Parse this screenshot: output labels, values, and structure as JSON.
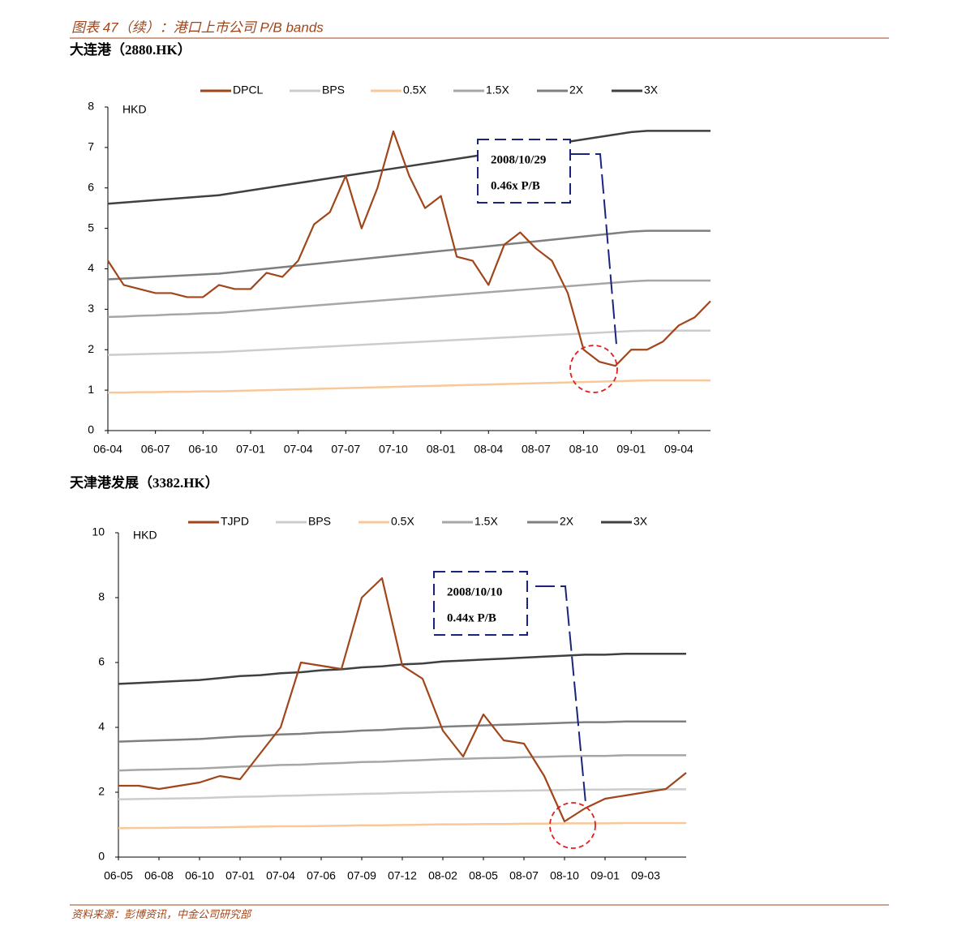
{
  "header": {
    "title": "图表 47（续）：港口上市公司 P/B bands"
  },
  "chart_data": [
    {
      "type": "line",
      "title": "大连港（2880.HK）",
      "y_label": "HKD",
      "categories": [
        "06-04",
        null,
        null,
        "06-07",
        null,
        null,
        "06-10",
        null,
        null,
        "07-01",
        null,
        null,
        "07-04",
        null,
        null,
        "07-07",
        null,
        null,
        "07-10",
        null,
        null,
        "08-01",
        null,
        null,
        "08-04",
        null,
        null,
        "08-07",
        null,
        null,
        "08-10",
        null,
        null,
        "09-01",
        null,
        null,
        "09-04",
        null,
        null
      ],
      "series": [
        {
          "name": "DPCL",
          "color": "#a0461a",
          "values": [
            4.2,
            3.6,
            3.5,
            3.4,
            3.4,
            3.3,
            3.3,
            3.6,
            3.5,
            3.5,
            3.9,
            3.8,
            4.2,
            5.1,
            5.4,
            6.3,
            5.0,
            6.0,
            7.4,
            6.3,
            5.5,
            5.8,
            4.3,
            4.2,
            3.6,
            4.6,
            4.9,
            4.5,
            4.2,
            3.4,
            2.0,
            1.7,
            1.6,
            2.0,
            2.0,
            2.2,
            2.6,
            2.8,
            3.2
          ]
        },
        {
          "name": "BPS",
          "color": "#cccccc",
          "values": [
            1.87,
            1.88,
            1.89,
            1.9,
            1.91,
            1.92,
            1.93,
            1.94,
            1.96,
            1.98,
            2.0,
            2.02,
            2.04,
            2.06,
            2.08,
            2.1,
            2.12,
            2.14,
            2.16,
            2.18,
            2.2,
            2.22,
            2.24,
            2.26,
            2.28,
            2.3,
            2.32,
            2.34,
            2.36,
            2.38,
            2.4,
            2.42,
            2.44,
            2.46,
            2.47,
            2.47,
            2.47,
            2.47,
            2.47
          ]
        },
        {
          "name": "0.5X",
          "color": "#f9c89a",
          "values": [
            0.94,
            0.94,
            0.95,
            0.95,
            0.96,
            0.96,
            0.97,
            0.97,
            0.98,
            0.99,
            1.0,
            1.01,
            1.02,
            1.03,
            1.04,
            1.05,
            1.06,
            1.07,
            1.08,
            1.09,
            1.1,
            1.11,
            1.12,
            1.13,
            1.14,
            1.15,
            1.16,
            1.17,
            1.18,
            1.19,
            1.2,
            1.21,
            1.22,
            1.23,
            1.24,
            1.24,
            1.24,
            1.24,
            1.24
          ]
        },
        {
          "name": "1.5X",
          "color": "#a6a6a6",
          "values": [
            2.81,
            2.82,
            2.84,
            2.85,
            2.87,
            2.88,
            2.9,
            2.91,
            2.94,
            2.97,
            3.0,
            3.03,
            3.06,
            3.09,
            3.12,
            3.15,
            3.18,
            3.21,
            3.24,
            3.27,
            3.3,
            3.33,
            3.36,
            3.39,
            3.42,
            3.45,
            3.48,
            3.51,
            3.54,
            3.57,
            3.6,
            3.63,
            3.66,
            3.69,
            3.71,
            3.71,
            3.71,
            3.71,
            3.71
          ]
        },
        {
          "name": "2X",
          "color": "#7f7f7f",
          "values": [
            3.74,
            3.76,
            3.78,
            3.8,
            3.82,
            3.84,
            3.86,
            3.88,
            3.92,
            3.96,
            4.0,
            4.04,
            4.08,
            4.12,
            4.16,
            4.2,
            4.24,
            4.28,
            4.32,
            4.36,
            4.4,
            4.44,
            4.48,
            4.52,
            4.56,
            4.6,
            4.64,
            4.68,
            4.72,
            4.76,
            4.8,
            4.84,
            4.88,
            4.92,
            4.94,
            4.94,
            4.94,
            4.94,
            4.94
          ]
        },
        {
          "name": "3X",
          "color": "#404040",
          "values": [
            5.61,
            5.64,
            5.67,
            5.7,
            5.73,
            5.76,
            5.79,
            5.82,
            5.88,
            5.94,
            6.0,
            6.06,
            6.12,
            6.18,
            6.24,
            6.3,
            6.36,
            6.42,
            6.48,
            6.54,
            6.6,
            6.66,
            6.72,
            6.78,
            6.84,
            6.9,
            6.96,
            7.02,
            7.08,
            7.14,
            7.2,
            7.26,
            7.32,
            7.38,
            7.41,
            7.41,
            7.41,
            7.41,
            7.41
          ]
        }
      ],
      "ylim": [
        0,
        8
      ],
      "yticks": [
        0,
        1,
        2,
        3,
        4,
        5,
        6,
        7,
        8
      ],
      "annotation": [
        "2008/10/29",
        "0.46x P/B"
      ]
    },
    {
      "type": "line",
      "title": "天津港发展（3382.HK）",
      "y_label": "HKD",
      "categories": [
        "06-05",
        null,
        "06-08",
        null,
        "06-10",
        null,
        "07-01",
        null,
        "07-04",
        null,
        "07-06",
        null,
        "07-09",
        null,
        "07-12",
        null,
        "08-02",
        null,
        "08-05",
        null,
        "08-07",
        null,
        "08-10",
        null,
        "09-01",
        null,
        "09-03",
        null,
        null
      ],
      "series": [
        {
          "name": "TJPD",
          "color": "#a0461a",
          "values": [
            2.2,
            2.2,
            2.1,
            2.2,
            2.3,
            2.5,
            2.4,
            3.2,
            4.0,
            6.0,
            5.9,
            5.8,
            8.0,
            8.6,
            5.9,
            5.5,
            3.9,
            3.1,
            4.4,
            3.6,
            3.5,
            2.5,
            1.1,
            1.5,
            1.8,
            1.9,
            2.0,
            2.1,
            2.6
          ]
        },
        {
          "name": "BPS",
          "color": "#cccccc",
          "values": [
            1.78,
            1.79,
            1.8,
            1.81,
            1.82,
            1.84,
            1.86,
            1.87,
            1.89,
            1.9,
            1.92,
            1.93,
            1.95,
            1.96,
            1.98,
            1.99,
            2.01,
            2.02,
            2.03,
            2.04,
            2.05,
            2.06,
            2.07,
            2.08,
            2.08,
            2.09,
            2.09,
            2.09,
            2.09
          ]
        },
        {
          "name": "0.5X",
          "color": "#f9c89a",
          "values": [
            0.89,
            0.9,
            0.9,
            0.91,
            0.91,
            0.92,
            0.93,
            0.94,
            0.95,
            0.95,
            0.96,
            0.97,
            0.98,
            0.98,
            0.99,
            1.0,
            1.01,
            1.01,
            1.02,
            1.02,
            1.03,
            1.03,
            1.04,
            1.04,
            1.04,
            1.05,
            1.05,
            1.05,
            1.05
          ]
        },
        {
          "name": "1.5X",
          "color": "#a6a6a6",
          "values": [
            2.67,
            2.69,
            2.7,
            2.72,
            2.73,
            2.76,
            2.79,
            2.81,
            2.84,
            2.85,
            2.88,
            2.9,
            2.93,
            2.94,
            2.97,
            2.99,
            3.02,
            3.03,
            3.05,
            3.06,
            3.08,
            3.09,
            3.11,
            3.12,
            3.12,
            3.14,
            3.14,
            3.14,
            3.14
          ]
        },
        {
          "name": "2X",
          "color": "#7f7f7f",
          "values": [
            3.56,
            3.58,
            3.6,
            3.62,
            3.64,
            3.68,
            3.72,
            3.74,
            3.78,
            3.8,
            3.84,
            3.86,
            3.9,
            3.92,
            3.96,
            3.98,
            4.02,
            4.04,
            4.06,
            4.08,
            4.1,
            4.12,
            4.14,
            4.16,
            4.16,
            4.18,
            4.18,
            4.18,
            4.18
          ]
        },
        {
          "name": "3X",
          "color": "#404040",
          "values": [
            5.34,
            5.37,
            5.4,
            5.43,
            5.46,
            5.52,
            5.58,
            5.61,
            5.67,
            5.7,
            5.76,
            5.79,
            5.85,
            5.88,
            5.94,
            5.97,
            6.03,
            6.06,
            6.09,
            6.12,
            6.15,
            6.18,
            6.21,
            6.24,
            6.24,
            6.27,
            6.27,
            6.27,
            6.27
          ]
        }
      ],
      "ylim": [
        0,
        10
      ],
      "yticks": [
        0,
        2,
        4,
        6,
        8,
        10
      ],
      "annotation": [
        "2008/10/10",
        "0.44x P/B"
      ]
    }
  ],
  "source": "资料来源：彭博资讯，中金公司研究部"
}
